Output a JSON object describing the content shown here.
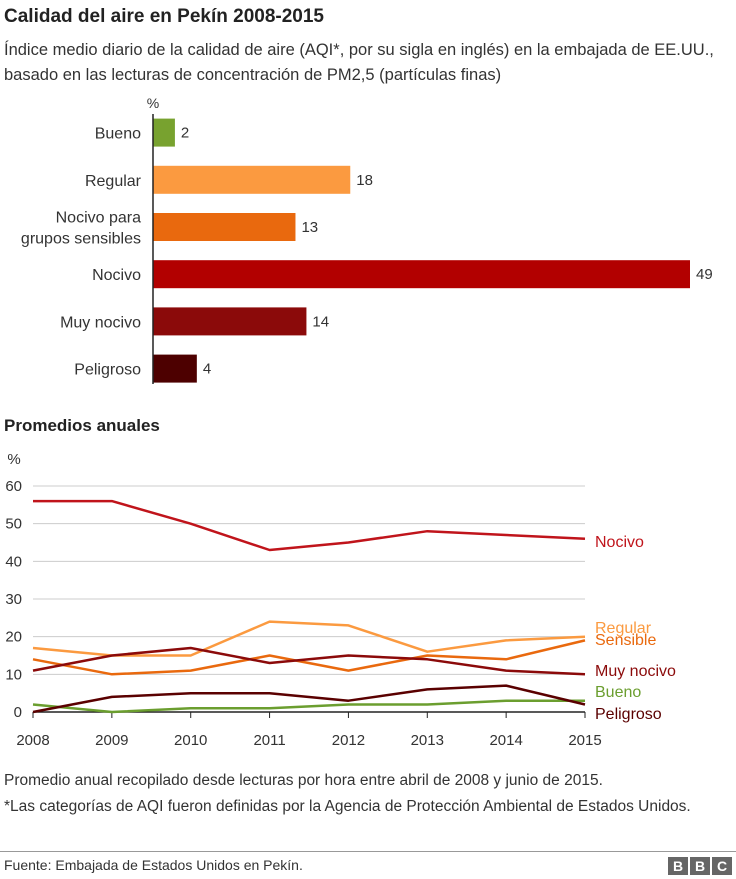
{
  "header": {
    "title": "Calidad del aire en Pekín 2008-2015",
    "subtitle": "Índice medio diario de la calidad de aire (AQI*, por su sigla en inglés) en la embajada de EE.UU., basado en las lecturas de concentración de PM2,5 (partículas finas)"
  },
  "section2_title": "Promedios anuales",
  "notes": {
    "line1": "Promedio anual recopilado desde lecturas por hora entre abril de 2008 y junio de 2015.",
    "line2": "*Las categorías de AQI fueron definidas por la Agencia de Protección Ambiental de Estados Unidos."
  },
  "footer": {
    "source": "Fuente: Embajada de Estados Unidos en Pekín.",
    "logo_letters": [
      "B",
      "B",
      "C"
    ]
  },
  "chart_data": [
    {
      "type": "bar",
      "orientation": "horizontal",
      "unit_label": "%",
      "categories": [
        "Bueno",
        "Regular",
        "Nocivo para grupos sensibles",
        "Nocivo",
        "Muy nocivo",
        "Peligroso"
      ],
      "category_lines": [
        [
          "Bueno"
        ],
        [
          "Regular"
        ],
        [
          "Nocivo para",
          "grupos sensibles"
        ],
        [
          "Nocivo"
        ],
        [
          "Muy nocivo"
        ],
        [
          "Peligroso"
        ]
      ],
      "values": [
        2,
        18,
        13,
        49,
        14,
        4
      ],
      "colors": [
        "#78a22f",
        "#fb9a40",
        "#e9690e",
        "#b20000",
        "#8b0a0a",
        "#4d0000"
      ],
      "xlim": [
        0,
        49
      ]
    },
    {
      "type": "line",
      "title": "Promedios anuales",
      "ylabel": "%",
      "x": [
        2008,
        2009,
        2010,
        2011,
        2012,
        2013,
        2014,
        2015
      ],
      "ylim": [
        0,
        60
      ],
      "yticks": [
        0,
        10,
        20,
        30,
        40,
        50,
        60
      ],
      "grid": true,
      "series": [
        {
          "name": "Nocivo",
          "color": "#c0141b",
          "values": [
            56,
            56,
            50,
            43,
            45,
            48,
            47,
            46
          ]
        },
        {
          "name": "Regular",
          "color": "#fb9a40",
          "values": [
            17,
            15,
            15,
            24,
            23,
            16,
            19,
            20
          ]
        },
        {
          "name": "Sensible",
          "color": "#e9690e",
          "values": [
            14,
            10,
            11,
            15,
            11,
            15,
            14,
            19
          ]
        },
        {
          "name": "Muy nocivo",
          "color": "#8b0a0a",
          "values": [
            11,
            15,
            17,
            13,
            15,
            14,
            11,
            10
          ]
        },
        {
          "name": "Bueno",
          "color": "#6b9e2f",
          "values": [
            2,
            0,
            1,
            1,
            2,
            2,
            3,
            3
          ]
        },
        {
          "name": "Peligroso",
          "color": "#5a0000",
          "values": [
            0,
            4,
            5,
            5,
            3,
            6,
            7,
            2
          ]
        }
      ]
    }
  ]
}
